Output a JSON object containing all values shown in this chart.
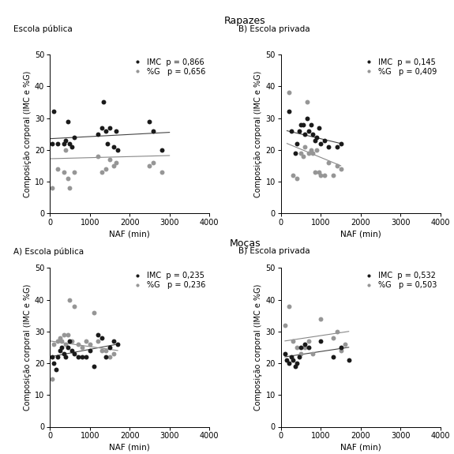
{
  "title_top": "Rapazes",
  "title_bottom": "Moças",
  "label_A1": "Escola pública",
  "label_B1": "B) Escola privada",
  "label_A2": "A) Escola pública",
  "label_B2": "B) Escola privada",
  "ylabel": "Composição corporal (IMC e %G)",
  "xlabel": "NAF (min)",
  "ylim": [
    0,
    50
  ],
  "xlim": [
    0,
    4000
  ],
  "yticks": [
    0,
    10,
    20,
    30,
    40,
    50
  ],
  "xticks": [
    0,
    1000,
    2000,
    3000,
    4000
  ],
  "rapazes_publica_imc_x": [
    50,
    100,
    200,
    350,
    400,
    450,
    500,
    550,
    600,
    1200,
    1300,
    1350,
    1400,
    1450,
    1500,
    1600,
    1650,
    1700,
    2500,
    2600,
    2800
  ],
  "rapazes_publica_imc_y": [
    22,
    32,
    22,
    22,
    23,
    29,
    22,
    21,
    24,
    25,
    27,
    35,
    26,
    22,
    27,
    21,
    26,
    20,
    29,
    26,
    20
  ],
  "rapazes_publica_g_x": [
    50,
    200,
    350,
    400,
    450,
    500,
    600,
    1200,
    1300,
    1400,
    1500,
    1600,
    1650,
    2500,
    2600,
    2800
  ],
  "rapazes_publica_g_y": [
    8,
    14,
    13,
    20,
    11,
    8,
    13,
    18,
    13,
    14,
    17,
    15,
    16,
    15,
    16,
    13
  ],
  "rapazes_publica_imc_p": "0,866",
  "rapazes_publica_g_p": "0,656",
  "rapazes_publica_imc_line": [
    0,
    3000,
    23.5,
    25.5
  ],
  "rapazes_publica_g_line": [
    0,
    3000,
    17.2,
    18.2
  ],
  "rapazes_privada_imc_x": [
    200,
    250,
    350,
    400,
    450,
    500,
    550,
    600,
    650,
    700,
    750,
    800,
    850,
    900,
    950,
    1000,
    1100,
    1200,
    1400,
    1500
  ],
  "rapazes_privada_imc_y": [
    32,
    26,
    19,
    22,
    26,
    28,
    28,
    25,
    30,
    26,
    28,
    25,
    23,
    24,
    27,
    22,
    23,
    21,
    21,
    22
  ],
  "rapazes_privada_g_x": [
    200,
    300,
    400,
    500,
    550,
    600,
    650,
    700,
    750,
    800,
    850,
    900,
    950,
    1000,
    1100,
    1200,
    1300,
    1400,
    1500
  ],
  "rapazes_privada_g_y": [
    38,
    12,
    11,
    19,
    18,
    21,
    35,
    19,
    20,
    19,
    13,
    20,
    13,
    12,
    12,
    16,
    12,
    15,
    14
  ],
  "rapazes_privada_imc_p": "0,145",
  "rapazes_privada_g_p": "0,409",
  "rapazes_privada_imc_line": [
    150,
    1500,
    26,
    22
  ],
  "rapazes_privada_g_line": [
    150,
    1500,
    22,
    15
  ],
  "mocas_publica_imc_x": [
    50,
    100,
    150,
    200,
    250,
    300,
    350,
    400,
    450,
    500,
    550,
    600,
    700,
    800,
    900,
    1000,
    1100,
    1200,
    1300,
    1400,
    1500,
    1600,
    1700
  ],
  "mocas_publica_imc_y": [
    22,
    20,
    18,
    22,
    24,
    25,
    23,
    22,
    25,
    27,
    24,
    23,
    22,
    22,
    22,
    24,
    19,
    29,
    28,
    22,
    25,
    27,
    26
  ],
  "mocas_publica_g_x": [
    50,
    100,
    200,
    250,
    300,
    350,
    400,
    450,
    500,
    550,
    600,
    700,
    800,
    900,
    1000,
    1100,
    1200,
    1300,
    1400,
    1500,
    1600
  ],
  "mocas_publica_g_y": [
    15,
    26,
    27,
    28,
    27,
    29,
    26,
    29,
    40,
    27,
    38,
    26,
    25,
    27,
    26,
    36,
    27,
    24,
    24,
    22,
    23
  ],
  "mocas_publica_imc_p": "0,235",
  "mocas_publica_g_p": "0,236",
  "mocas_publica_imc_line": [
    0,
    1700,
    22,
    26
  ],
  "mocas_publica_g_line": [
    0,
    1700,
    27,
    24
  ],
  "mocas_privada_imc_x": [
    100,
    150,
    200,
    250,
    300,
    350,
    400,
    450,
    500,
    600,
    700,
    1000,
    1300,
    1500,
    1700
  ],
  "mocas_privada_imc_y": [
    23,
    21,
    20,
    22,
    21,
    19,
    20,
    22,
    25,
    26,
    25,
    27,
    22,
    25,
    21
  ],
  "mocas_privada_g_x": [
    100,
    200,
    300,
    400,
    500,
    600,
    700,
    800,
    1000,
    1300,
    1400,
    1500,
    1600
  ],
  "mocas_privada_g_y": [
    32,
    38,
    27,
    25,
    23,
    25,
    27,
    23,
    34,
    28,
    30,
    24,
    26
  ],
  "mocas_privada_imc_p": "0,532",
  "mocas_privada_g_p": "0,503",
  "mocas_privada_imc_line": [
    100,
    1700,
    22,
    25
  ],
  "mocas_privada_g_line": [
    100,
    1700,
    27,
    30
  ],
  "color_imc": "#1a1a1a",
  "color_g": "#969696",
  "line_color_imc": "#444444",
  "line_color_g": "#888888",
  "background": "#ffffff",
  "marker_size": 18,
  "fontsize_title": 9,
  "fontsize_label": 7.5,
  "fontsize_tick": 7,
  "fontsize_legend": 7,
  "fontsize_sublabel": 7.5
}
